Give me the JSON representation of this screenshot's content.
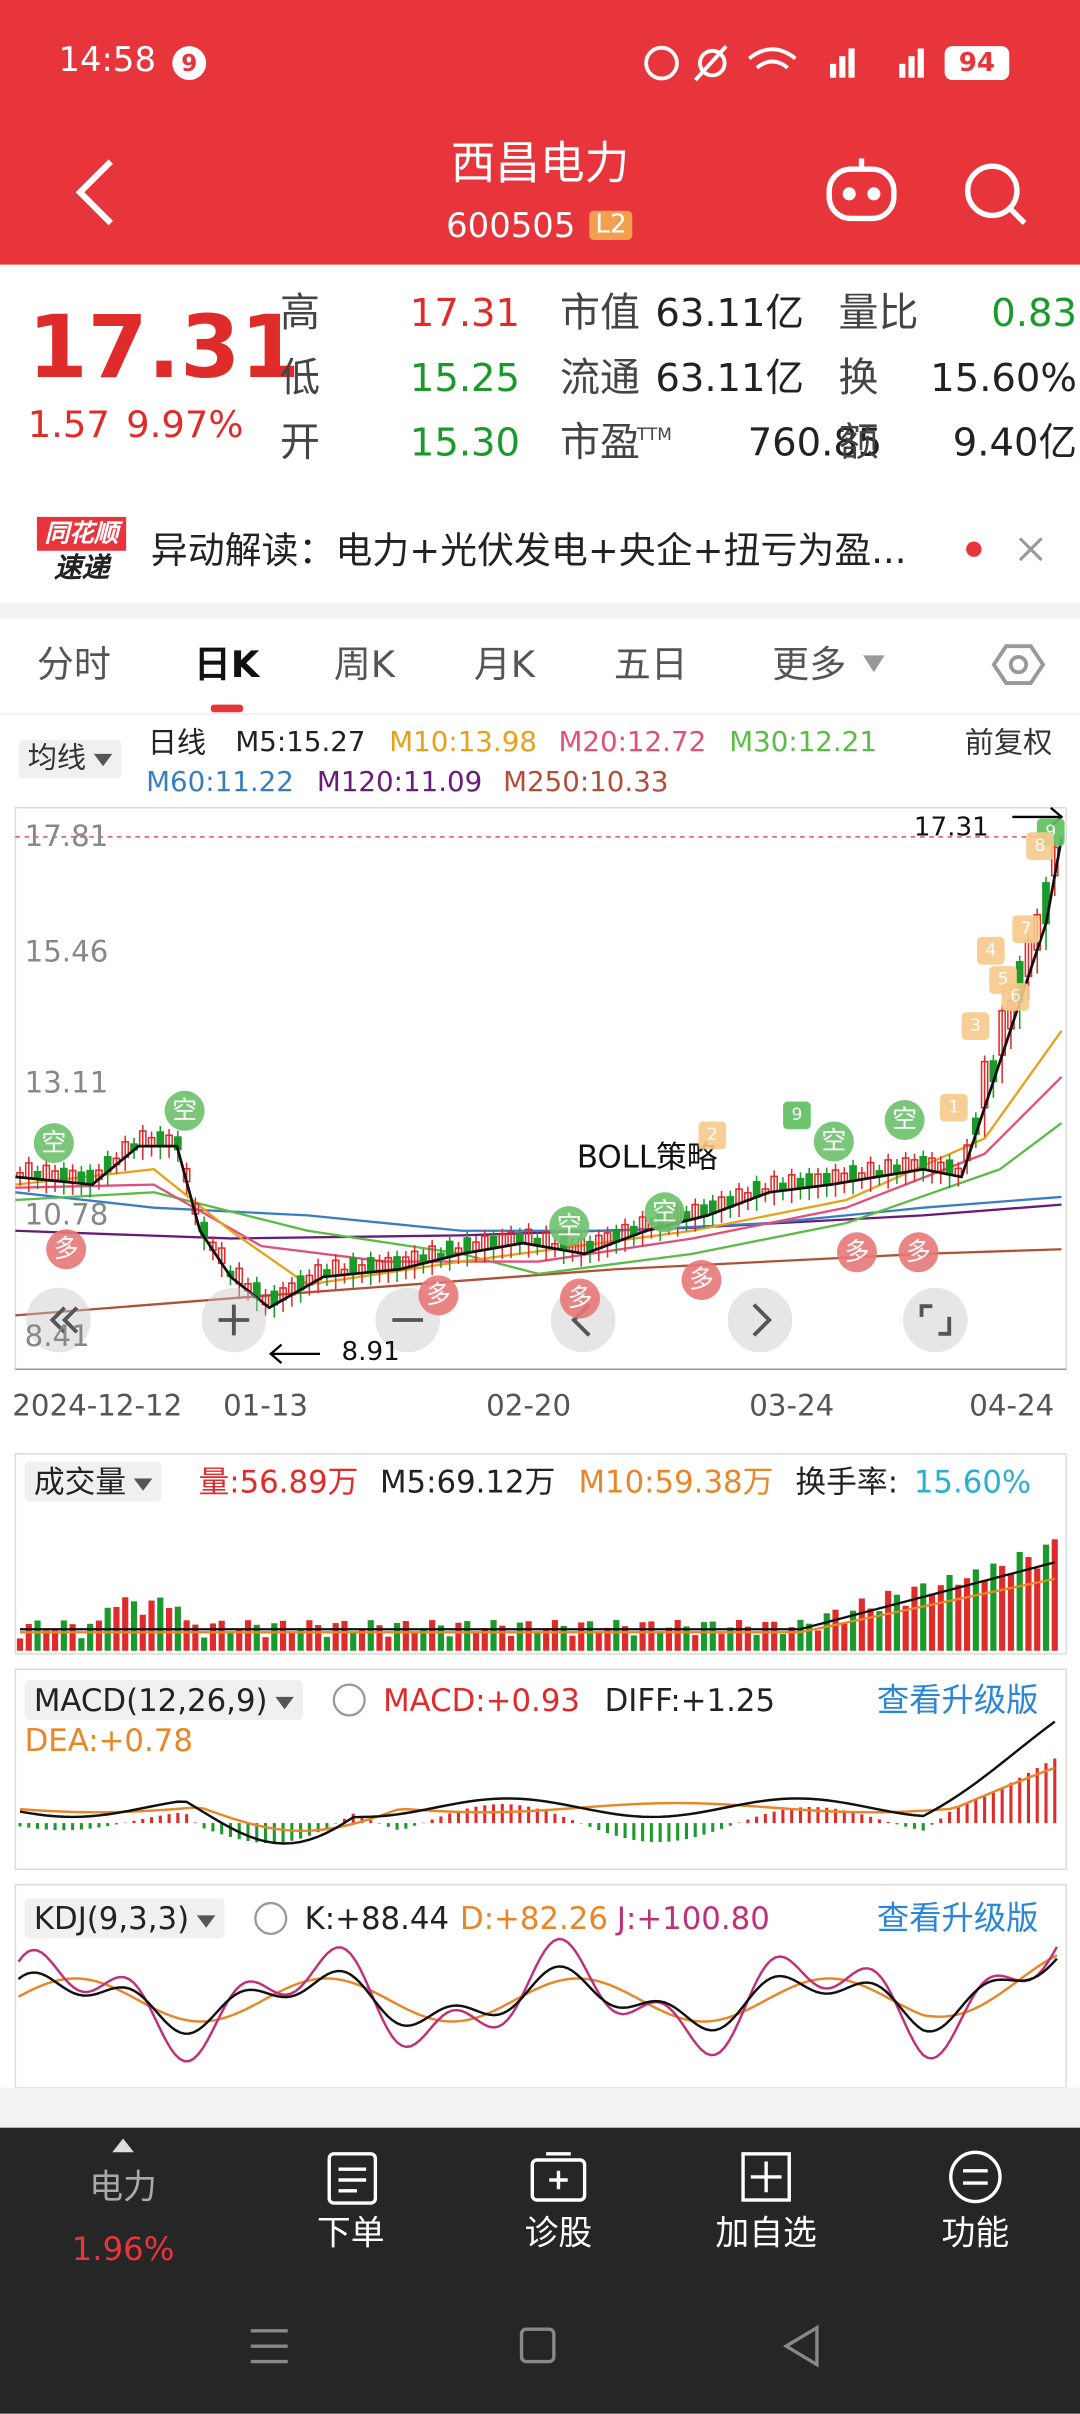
{
  "status": {
    "time": "14:58",
    "badge": "9",
    "battery": "94"
  },
  "header": {
    "title": "西昌电力",
    "code": "600505",
    "level": "L2"
  },
  "quote": {
    "price": "17.31",
    "change": "1.57",
    "percent": "9.97%",
    "stats": [
      {
        "label": "高",
        "value": "17.31"
      },
      {
        "label": "市值",
        "value": "63.11亿"
      },
      {
        "label": "量比",
        "value": "0.83"
      },
      {
        "label": "低",
        "value": "15.25"
      },
      {
        "label": "流通",
        "value": "63.11亿"
      },
      {
        "label": "换",
        "value": "15.60%"
      },
      {
        "label": "开",
        "value": "15.30"
      },
      {
        "label": "市盈",
        "sup": "TTM",
        "value": "760.85"
      },
      {
        "label": "额",
        "value": "9.40亿"
      }
    ]
  },
  "banner": {
    "brand": [
      "同花顺",
      "速递"
    ],
    "text": "异动解读：电力+光伏发电+央企+扭亏为盈..."
  },
  "tabs": [
    "分时",
    "日K",
    "周K",
    "月K",
    "五日",
    "更多"
  ],
  "kline": {
    "selector": "均线",
    "period": "日线",
    "ma": [
      "M5:15.27",
      "M10:13.98",
      "M20:12.72",
      "M30:12.21",
      "M60:11.22",
      "M120:11.09",
      "M250:10.33"
    ],
    "adjust": "前复权",
    "yaxis": [
      "17.81",
      "15.46",
      "13.11",
      "10.78",
      "8.41"
    ],
    "high_label": "17.31",
    "low_label": "8.91",
    "strategy": "BOLL策略",
    "dates": [
      "2024-12-12",
      "01-13",
      "02-20",
      "03-24",
      "04-24"
    ],
    "signals": [
      "空",
      "空",
      "空",
      "空",
      "空",
      "空",
      "多",
      "多",
      "多",
      "多",
      "多",
      "多",
      "9",
      "9",
      "2",
      "3",
      "4",
      "5",
      "6",
      "7",
      "8",
      "1"
    ]
  },
  "volume": {
    "title": "成交量",
    "items": [
      "量:56.89万",
      "M5:69.12万",
      "M10:59.38万"
    ],
    "turnover_label": "换手率:",
    "turnover": "15.60%"
  },
  "macd": {
    "title": "MACD(12,26,9)",
    "items": [
      "MACD:+0.93",
      "DIFF:+1.25",
      "DEA:+0.78"
    ],
    "upgrade": "查看升级版"
  },
  "kdj": {
    "title": "KDJ(9,3,3)",
    "items": [
      "K:+88.44",
      "D:+82.26",
      "J:+100.80"
    ],
    "upgrade": "查看升级版"
  },
  "nav": [
    {
      "label": "电力",
      "sub": "1.96%"
    },
    {
      "label": "下单"
    },
    {
      "label": "诊股"
    },
    {
      "label": "加自选"
    },
    {
      "label": "功能"
    }
  ]
}
